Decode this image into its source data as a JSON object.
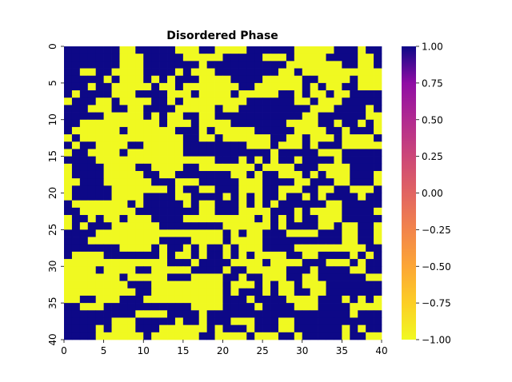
{
  "chart_data": {
    "type": "heatmap",
    "title": "Disordered Phase",
    "xlabel": "",
    "ylabel": "",
    "rows": 40,
    "cols": 40,
    "x_ticks": [
      "0",
      "5",
      "10",
      "15",
      "20",
      "25",
      "30",
      "35",
      "40"
    ],
    "y_ticks": [
      "0",
      "5",
      "10",
      "15",
      "20",
      "25",
      "30",
      "35",
      "40"
    ],
    "colorbar": {
      "min": -1.0,
      "max": 1.0,
      "colormap": "plasma",
      "ticks": [
        "1.00",
        "0.75",
        "0.50",
        "0.25",
        "0.00",
        "−0.25",
        "−0.50",
        "−0.75",
        "−1.00"
      ],
      "tick_values": [
        1.0,
        0.75,
        0.5,
        0.25,
        0.0,
        -0.25,
        -0.5,
        -0.75,
        -1.0
      ]
    },
    "colors": {
      "positive": "#0d0887",
      "negative": "#f0f921"
    },
    "grid": false,
    "spins": [
      "1111111001111100011000011111100000111011",
      "1111111000111110000011111000100001111001",
      "1111111000111111101111111111000000011001",
      "1100110000111101000111111110010000000000",
      "1111101000101011100001111000001100001000",
      "1110110000010010000000110000001010011000",
      "1011110001111000100001000001101001001111",
      "0111001000011010000000011111100100011111",
      "1110001100111100000100111111111000111101",
      "1111100000101001100111111111110011111100",
      "1100000000001000100001111111000011011010",
      "1000000100000011101000001111100001101110",
      "0100000000000001100100000011001000100001",
      "1011000011000001111111100010001011100000",
      "0110000100000001111111111101111100011111",
      "1111000000000000000111010101101111011111",
      "0111100001100001100000001000011100001111",
      "0111100000110011111110010110001010001110",
      "0011100000011100011111000111100111001110",
      "0111110000000101100111000110001100110001",
      "0111110000111100111101010110110101111011",
      "1000000010111110100111010101111110011111",
      "1100000001111111100111000011101000011110",
      "0110100100011110000000001010101100011111",
      "0101110000001111111100000010111100100110",
      "1111000000000000000010100111000011100110",
      "1110000000001111000010000111111111100110",
      "1111111000010110101101000111100000000011",
      "1000011111110100101101010000110011110101",
      "0000000000000111011110000100001110001011",
      "0000100001100000111101100000111011110011",
      "0000000100000111000011011000110011111100",
      "0000000011100000000010001010010001111111",
      "0000000001100000000010111010011001111111",
      "0011000111000000000011101111000011101010",
      "1100011111111111000011110111100011110000",
      "1111111110000111101111111111111111110111",
      "1111110001111101101110001110011111111111",
      "1111010001110000001011101110011111101011",
      "1111000000100000011000010001101111101100"
    ]
  }
}
